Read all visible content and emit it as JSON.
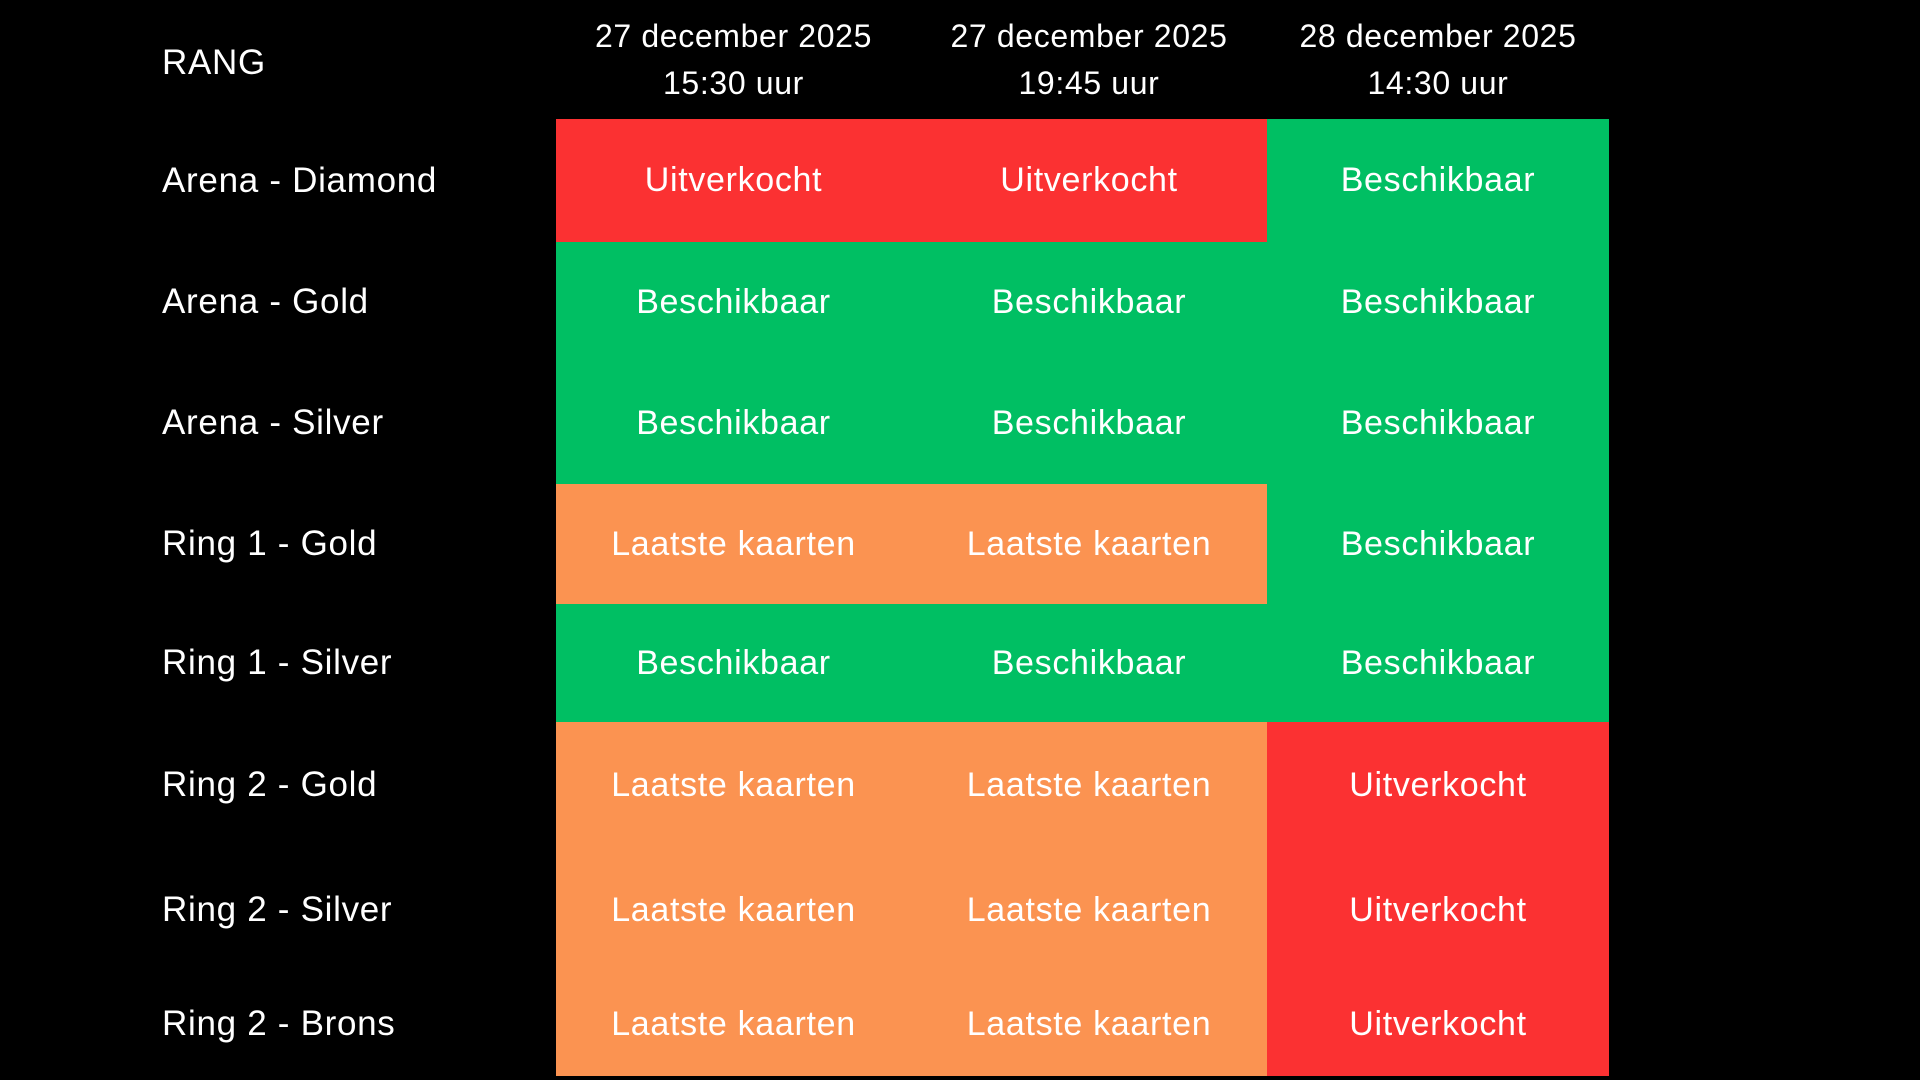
{
  "colors": {
    "background": "#000000",
    "text": "#ffffff"
  },
  "table": {
    "rank_header": "RANG",
    "sessions": [
      {
        "date": "27 december 2025",
        "time": "15:30 uur"
      },
      {
        "date": "27 december 2025",
        "time": "19:45 uur"
      },
      {
        "date": "28 december 2025",
        "time": "14:30 uur"
      }
    ],
    "statuses": {
      "sold_out": {
        "label": "Uitverkocht",
        "color": "#FB3132"
      },
      "available": {
        "label": "Beschikbaar",
        "color": "#00BF63"
      },
      "last_tickets": {
        "label": "Laatste kaarten",
        "color": "#FB9351"
      }
    },
    "rows": [
      {
        "rank": "Arena - Diamond",
        "cells": [
          "sold_out",
          "sold_out",
          "available"
        ]
      },
      {
        "rank": "Arena - Gold",
        "cells": [
          "available",
          "available",
          "available"
        ]
      },
      {
        "rank": "Arena - Silver",
        "cells": [
          "available",
          "available",
          "available"
        ]
      },
      {
        "rank": "Ring 1 - Gold",
        "cells": [
          "last_tickets",
          "last_tickets",
          "available"
        ]
      },
      {
        "rank": "Ring 1 - Silver",
        "cells": [
          "available",
          "available",
          "available"
        ]
      },
      {
        "rank": "Ring 2 - Gold",
        "cells": [
          "last_tickets",
          "last_tickets",
          "sold_out"
        ]
      },
      {
        "rank": "Ring 2 - Silver",
        "cells": [
          "last_tickets",
          "last_tickets",
          "sold_out"
        ]
      },
      {
        "rank": "Ring 2 - Brons",
        "cells": [
          "last_tickets",
          "last_tickets",
          "sold_out"
        ]
      }
    ]
  },
  "chart_data": {
    "type": "table",
    "columns": [
      "RANG",
      "27 december 2025 15:30 uur",
      "27 december 2025 19:45 uur",
      "28 december 2025 14:30 uur"
    ],
    "rows": [
      [
        "Arena - Diamond",
        "Uitverkocht",
        "Uitverkocht",
        "Beschikbaar"
      ],
      [
        "Arena - Gold",
        "Beschikbaar",
        "Beschikbaar",
        "Beschikbaar"
      ],
      [
        "Arena - Silver",
        "Beschikbaar",
        "Beschikbaar",
        "Beschikbaar"
      ],
      [
        "Ring 1 - Gold",
        "Laatste kaarten",
        "Laatste kaarten",
        "Beschikbaar"
      ],
      [
        "Ring 1 - Silver",
        "Beschikbaar",
        "Beschikbaar",
        "Beschikbaar"
      ],
      [
        "Ring 2 - Gold",
        "Laatste kaarten",
        "Laatste kaarten",
        "Uitverkocht"
      ],
      [
        "Ring 2 - Silver",
        "Laatste kaarten",
        "Laatste kaarten",
        "Uitverkocht"
      ],
      [
        "Ring 2 - Brons",
        "Laatste kaarten",
        "Laatste kaarten",
        "Uitverkocht"
      ]
    ],
    "legend": {
      "Uitverkocht": "#FB3132",
      "Beschikbaar": "#00BF63",
      "Laatste kaarten": "#FB9351"
    }
  }
}
